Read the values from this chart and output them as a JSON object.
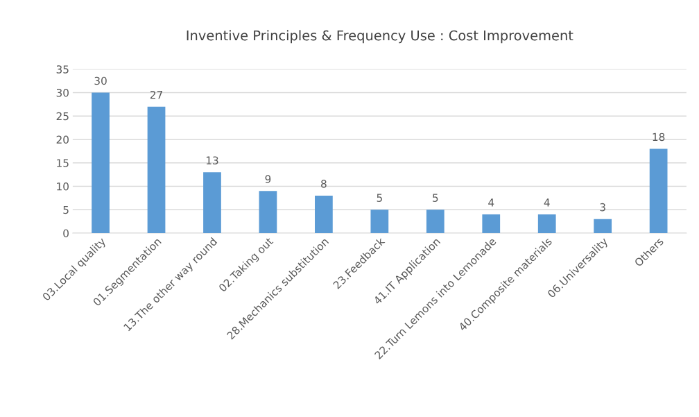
{
  "chart_data": {
    "type": "bar",
    "title": "Inventive Principles & Frequency Use : Cost Improvement",
    "categories": [
      "03.Local quality",
      "01.Segmentation",
      "13.The other way round",
      "02.Taking out",
      "28.Mechanics substitution",
      "23.Feedback",
      "41.IT Application",
      "22.Turn Lemons into Lemonade",
      "40.Composite materials",
      "06.Universality",
      "Others"
    ],
    "values": [
      30,
      27,
      13,
      9,
      8,
      5,
      5,
      4,
      4,
      3,
      18
    ],
    "color": "#5b9bd5",
    "ylim": [
      0,
      35
    ],
    "yticks": [
      0,
      5,
      10,
      15,
      20,
      25,
      30,
      35
    ],
    "grid": "y",
    "data_labels": true,
    "legend": false
  }
}
